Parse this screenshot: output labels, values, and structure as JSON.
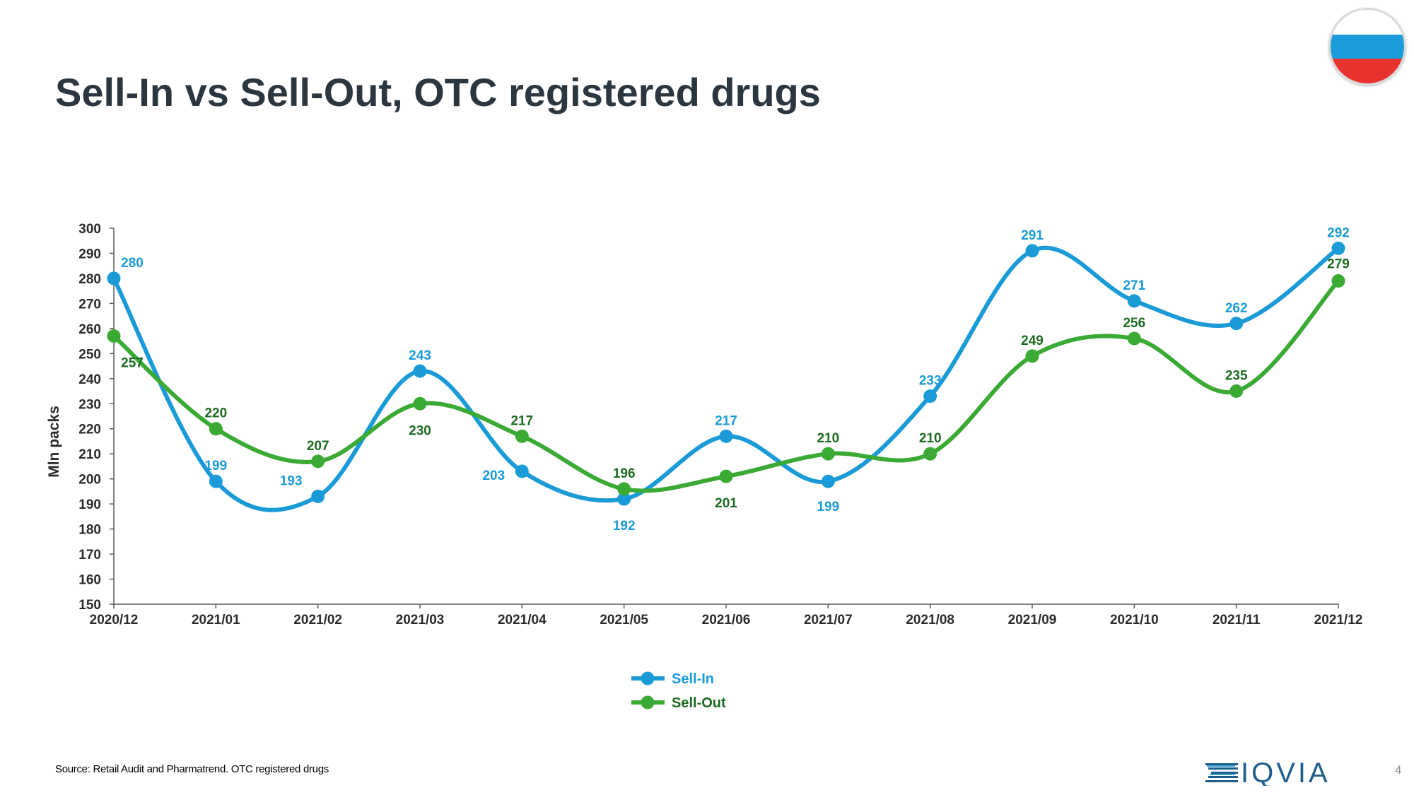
{
  "slide": {
    "title": "Sell-In vs Sell-Out, OTC registered drugs",
    "source": "Source: Retail Audit and Pharmatrend. OTC registered drugs",
    "page_number": "4",
    "logo_text": "IQVIA",
    "flag": {
      "colors": [
        "#ffffff",
        "#1c9ddb",
        "#e8322e"
      ]
    }
  },
  "chart_data": {
    "type": "line",
    "title": "",
    "xlabel": "",
    "ylabel": "Mln packs",
    "ylim": [
      150,
      300
    ],
    "yticks": [
      150,
      160,
      170,
      180,
      190,
      200,
      210,
      220,
      230,
      240,
      250,
      260,
      270,
      280,
      290,
      300
    ],
    "categories": [
      "2020/12",
      "2021/01",
      "2021/02",
      "2021/03",
      "2021/04",
      "2021/05",
      "2021/06",
      "2021/07",
      "2021/08",
      "2021/09",
      "2021/10",
      "2021/11",
      "2021/12"
    ],
    "series": [
      {
        "name": "Sell-In",
        "color": "#1a9bd7",
        "label_color": "#1a9bd7",
        "values": [
          280,
          199,
          193,
          243,
          203,
          192,
          217,
          199,
          233,
          291,
          271,
          262,
          292
        ]
      },
      {
        "name": "Sell-Out",
        "color": "#3aaa35",
        "label_color": "#1d6b22",
        "values": [
          257,
          220,
          207,
          230,
          217,
          196,
          201,
          210,
          210,
          249,
          256,
          235,
          279
        ]
      }
    ],
    "grid": false,
    "legend_position": "bottom-center"
  }
}
